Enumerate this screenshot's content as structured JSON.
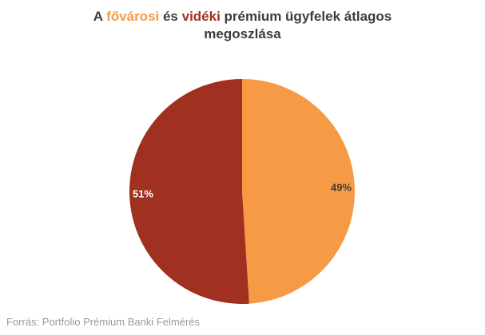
{
  "title": {
    "prefix": "A ",
    "highlight_1": "fővárosi",
    "middle": " és ",
    "highlight_2": "vidéki",
    "suffix_line1": " prémium ügyfelek átlagos",
    "line2": "megoszlása"
  },
  "source": "Forrás: Portfolio Prémium Banki Felmérés",
  "colors": {
    "capital": "#f79a46",
    "rural": "#a0301f",
    "title_text": "#3d3d3d",
    "source_text": "#9a9a9a"
  },
  "chart_data": {
    "type": "pie",
    "slices": [
      {
        "value": 49,
        "label": "49%",
        "color": "#f79a46",
        "label_color": "#3d3d3d"
      },
      {
        "value": 51,
        "label": "51%",
        "color": "#a0301f",
        "label_color": "#ffffff"
      }
    ]
  }
}
